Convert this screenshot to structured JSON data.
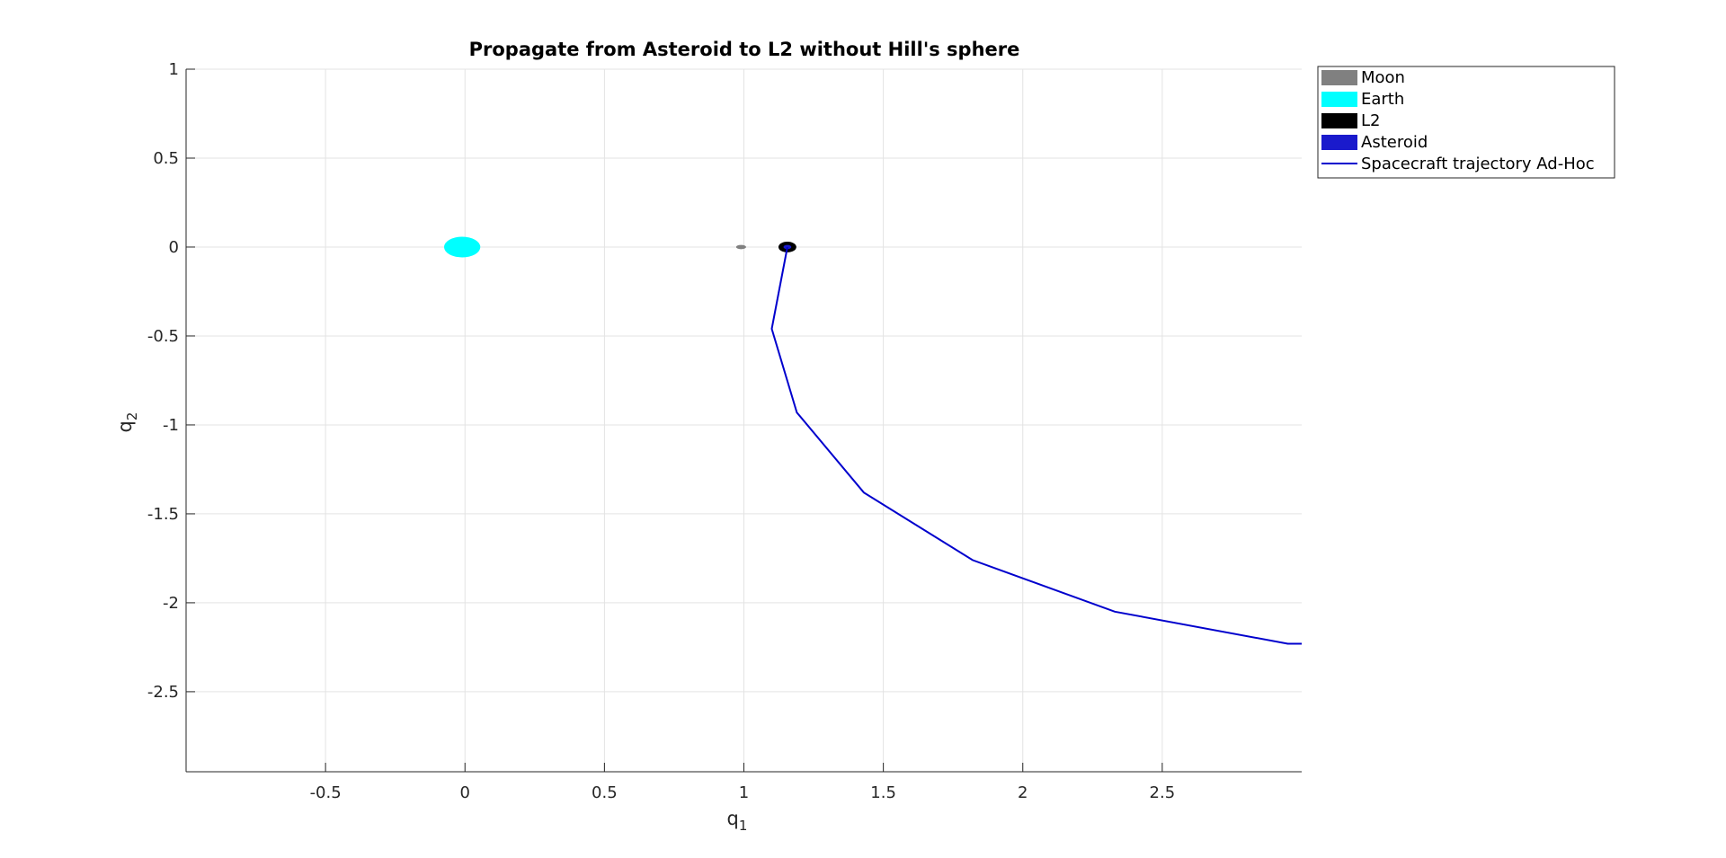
{
  "chart_data": {
    "type": "scatter",
    "title": "Propagate from Asteroid to L2 without Hill's sphere",
    "xlabel": "q",
    "xlabel_sub": "1",
    "ylabel": "q",
    "ylabel_sub": "2",
    "xlim": [
      -1.0,
      3.0
    ],
    "ylim": [
      -2.95,
      1.0
    ],
    "xticks": [
      -0.5,
      0,
      0.5,
      1,
      1.5,
      2,
      2.5
    ],
    "xtick_labels": [
      "-0.5",
      "0",
      "0.5",
      "1",
      "1.5",
      "2",
      "2.5"
    ],
    "yticks": [
      1,
      0.5,
      0,
      -0.5,
      -1,
      -1.5,
      -2,
      -2.5
    ],
    "ytick_labels": [
      "1",
      "0.5",
      "0",
      "-0.5",
      "-1",
      "-1.5",
      "-2",
      "-2.5"
    ],
    "grid": true,
    "legend_position": "outside-top-right",
    "bodies": [
      {
        "name": "Moon",
        "x": 0.99,
        "y": 0.0,
        "rx": 0.018,
        "ry": 0.012,
        "color": "#808080"
      },
      {
        "name": "Earth",
        "x": -0.01,
        "y": 0.0,
        "rx": 0.065,
        "ry": 0.058,
        "color": "#00FFFF"
      },
      {
        "name": "L2",
        "x": 1.156,
        "y": 0.0,
        "rx": 0.032,
        "ry": 0.03,
        "color": "#000000"
      },
      {
        "name": "Asteroid",
        "x": 1.156,
        "y": 0.0,
        "rx": 0.014,
        "ry": 0.012,
        "color": "#1A1ACC"
      }
    ],
    "series": [
      {
        "name": "Spacecraft trajectory Ad-Hoc",
        "color": "#0000CD",
        "x": [
          1.156,
          1.1,
          1.19,
          1.43,
          1.82,
          2.33,
          2.95,
          3.0
        ],
        "y": [
          0.0,
          -0.46,
          -0.93,
          -1.38,
          -1.76,
          -2.05,
          -2.23,
          -2.23
        ]
      }
    ],
    "legend": [
      {
        "label": "Moon",
        "kind": "patch",
        "color": "#808080"
      },
      {
        "label": "Earth",
        "kind": "patch",
        "color": "#00FFFF"
      },
      {
        "label": "L2",
        "kind": "patch",
        "color": "#000000"
      },
      {
        "label": "Asteroid",
        "kind": "patch",
        "color": "#1A1ACC"
      },
      {
        "label": "Spacecraft trajectory Ad-Hoc",
        "kind": "line",
        "color": "#0000CD"
      }
    ]
  }
}
